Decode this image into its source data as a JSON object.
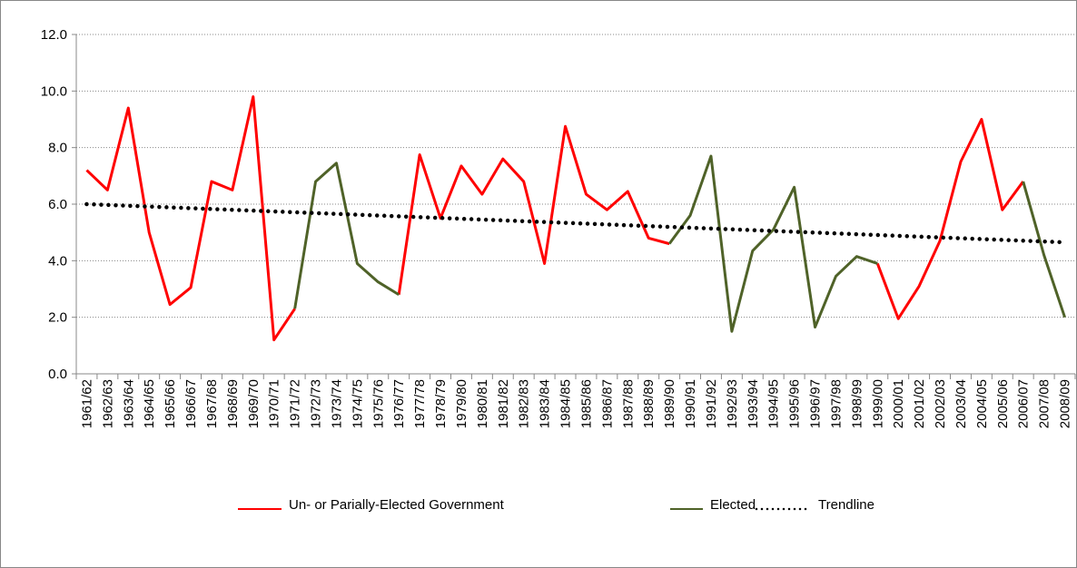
{
  "chart_data": {
    "type": "line",
    "categories": [
      "1961/62",
      "1962/63",
      "1963/64",
      "1964/65",
      "1965/66",
      "1966/67",
      "1967/68",
      "1968/69",
      "1969/70",
      "1970/71",
      "1971/72",
      "1972/73",
      "1973/74",
      "1974/75",
      "1975/76",
      "1976/77",
      "1977/78",
      "1978/79",
      "1979/80",
      "1980/81",
      "1981/82",
      "1982/83",
      "1983/84",
      "1984/85",
      "1985/86",
      "1986/87",
      "1987/88",
      "1988/89",
      "1989/90",
      "1990/91",
      "1991/92",
      "1992/93",
      "1993/94",
      "1994/95",
      "1995/96",
      "1996/97",
      "1997/98",
      "1998/99",
      "1999/00",
      "2000/01",
      "2001/02",
      "2002/03",
      "2003/04",
      "2004/05",
      "2005/06",
      "2006/07",
      "2007/08",
      "2008/09"
    ],
    "series": [
      {
        "name": "Un- or Parially-Elected Government",
        "color": "#ff0000",
        "values": [
          7.2,
          6.5,
          9.4,
          5.0,
          2.45,
          3.05,
          6.8,
          6.5,
          9.8,
          1.2,
          2.3,
          null,
          null,
          null,
          null,
          2.8,
          7.75,
          5.5,
          7.35,
          6.35,
          7.6,
          6.8,
          3.9,
          8.75,
          6.35,
          5.8,
          6.45,
          4.8,
          4.6,
          null,
          null,
          null,
          null,
          null,
          null,
          null,
          null,
          null,
          3.9,
          1.95,
          3.1,
          4.7,
          7.5,
          9.0,
          5.8,
          6.8,
          null,
          null
        ]
      },
      {
        "name": "Elected",
        "color": "#4f6228",
        "values": [
          null,
          null,
          null,
          null,
          null,
          null,
          null,
          null,
          null,
          null,
          2.3,
          6.8,
          7.45,
          3.9,
          3.25,
          2.8,
          null,
          null,
          null,
          null,
          null,
          null,
          null,
          null,
          null,
          null,
          null,
          null,
          4.6,
          5.6,
          7.7,
          1.5,
          4.35,
          5.1,
          6.6,
          1.65,
          3.45,
          4.15,
          3.9,
          null,
          null,
          null,
          null,
          null,
          null,
          6.8,
          4.2,
          2.0
        ]
      }
    ],
    "trendline": {
      "name": "Trendline",
      "color": "#000000",
      "start": 6.0,
      "end": 4.65
    },
    "ylim": [
      0,
      12
    ],
    "yticks": [
      {
        "value": 0,
        "label": "0.0"
      },
      {
        "value": 2,
        "label": "2.0"
      },
      {
        "value": 4,
        "label": "4.0"
      },
      {
        "value": 6,
        "label": "6.0"
      },
      {
        "value": 8,
        "label": "8.0"
      },
      {
        "value": 10,
        "label": "10.0"
      },
      {
        "value": 12,
        "label": "12.0"
      }
    ],
    "grid": true
  }
}
